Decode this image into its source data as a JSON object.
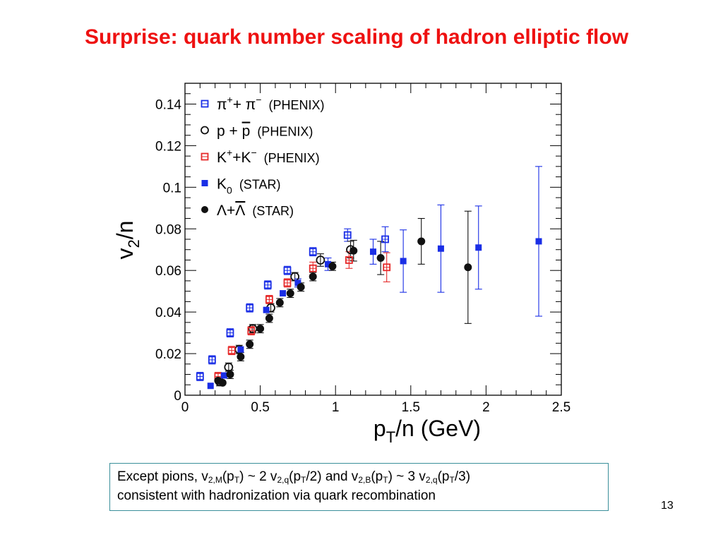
{
  "slide": {
    "title": "Surprise: quark number scaling of hadron elliptic flow",
    "page_number": "13",
    "note": {
      "line1": [
        {
          "t": "Except pions, v"
        },
        {
          "t": "2,M",
          "sub": true
        },
        {
          "t": "(p"
        },
        {
          "t": "T",
          "sub": true
        },
        {
          "t": ") ~ 2 v"
        },
        {
          "t": "2,q",
          "sub": true
        },
        {
          "t": "(p"
        },
        {
          "t": "T",
          "sub": true
        },
        {
          "t": "/2) and v"
        },
        {
          "t": "2,B",
          "sub": true
        },
        {
          "t": "(p"
        },
        {
          "t": "T",
          "sub": true
        },
        {
          "t": ") ~ 3 v"
        },
        {
          "t": "2,q",
          "sub": true
        },
        {
          "t": "(p"
        },
        {
          "t": "T",
          "sub": true
        },
        {
          "t": "/3)"
        }
      ],
      "line2": "consistent with hadronization via quark recombination"
    },
    "colors": {
      "title": "#ee1111",
      "box_border": "#3a8f9a"
    }
  },
  "chart_data": {
    "type": "scatter",
    "xlabel": "p_T/n (GeV)",
    "ylabel": "v_2/n",
    "xlim": [
      0,
      2.5
    ],
    "ylim": [
      0,
      0.15
    ],
    "xticks": [
      0,
      0.5,
      1,
      1.5,
      2,
      2.5
    ],
    "xtick_labels": [
      "0",
      "0.5",
      "1",
      "1.5",
      "2",
      "2.5"
    ],
    "yticks": [
      0,
      0.02,
      0.04,
      0.06,
      0.08,
      0.1,
      0.12,
      0.14
    ],
    "ytick_labels": [
      "0",
      "0.02",
      "0.04",
      "0.06",
      "0.08",
      "0.1",
      "0.12",
      "0.14"
    ],
    "grid": false,
    "legend_position": "top-left",
    "series": [
      {
        "name": "π⁺+ π⁻ (PHENIX)",
        "legend": {
          "main": "π",
          "sup1": "+",
          "mid": "+ π",
          "sup2": "−",
          "tag": "(PHENIX)"
        },
        "marker": "open-square",
        "color": "#1a2ee6",
        "points": [
          {
            "x": 0.1,
            "y": 0.009,
            "err": 0.002
          },
          {
            "x": 0.18,
            "y": 0.017,
            "err": 0.002
          },
          {
            "x": 0.3,
            "y": 0.03,
            "err": 0.002
          },
          {
            "x": 0.43,
            "y": 0.042,
            "err": 0.002
          },
          {
            "x": 0.55,
            "y": 0.053,
            "err": 0.002
          },
          {
            "x": 0.68,
            "y": 0.06,
            "err": 0.002
          },
          {
            "x": 0.85,
            "y": 0.069,
            "err": 0.002
          },
          {
            "x": 1.08,
            "y": 0.077,
            "err": 0.003
          },
          {
            "x": 1.33,
            "y": 0.075,
            "err": 0.006
          }
        ]
      },
      {
        "name": "p + p̄ (PHENIX)",
        "legend": {
          "main": "p + p",
          "overline_last": true,
          "tag": "(PHENIX)"
        },
        "marker": "open-circle",
        "color": "#111111",
        "points": [
          {
            "x": 0.23,
            "y": 0.0065,
            "err": 0.002
          },
          {
            "x": 0.29,
            "y": 0.0135,
            "err": 0.002
          },
          {
            "x": 0.36,
            "y": 0.022,
            "err": 0.002
          },
          {
            "x": 0.45,
            "y": 0.032,
            "err": 0.002
          },
          {
            "x": 0.57,
            "y": 0.042,
            "err": 0.002
          },
          {
            "x": 0.73,
            "y": 0.057,
            "err": 0.002
          },
          {
            "x": 0.9,
            "y": 0.065,
            "err": 0.003
          },
          {
            "x": 1.1,
            "y": 0.07,
            "err": 0.004
          }
        ]
      },
      {
        "name": "K⁺+K⁻ (PHENIX)",
        "legend": {
          "main": "K",
          "sup1": "+",
          "mid": "+K",
          "sup2": "−",
          "tag": "(PHENIX)"
        },
        "marker": "open-square",
        "color": "#e62a2a",
        "points": [
          {
            "x": 0.22,
            "y": 0.009,
            "err": 0.002
          },
          {
            "x": 0.31,
            "y": 0.0215,
            "err": 0.002
          },
          {
            "x": 0.44,
            "y": 0.031,
            "err": 0.002
          },
          {
            "x": 0.56,
            "y": 0.046,
            "err": 0.002
          },
          {
            "x": 0.68,
            "y": 0.054,
            "err": 0.002
          },
          {
            "x": 0.85,
            "y": 0.061,
            "err": 0.003
          },
          {
            "x": 1.09,
            "y": 0.065,
            "err": 0.004
          },
          {
            "x": 1.34,
            "y": 0.0615,
            "err": 0.007
          }
        ]
      },
      {
        "name": "K₀ (STAR)",
        "legend": {
          "main": "K",
          "sub1": "0",
          "tag": "(STAR)"
        },
        "marker": "filled-square",
        "color": "#1a2ee6",
        "points": [
          {
            "x": 0.17,
            "y": 0.0045,
            "err": 0.001
          },
          {
            "x": 0.26,
            "y": 0.0095,
            "err": 0.001
          },
          {
            "x": 0.37,
            "y": 0.022,
            "err": 0.001
          },
          {
            "x": 0.54,
            "y": 0.041,
            "err": 0.001
          },
          {
            "x": 0.65,
            "y": 0.049,
            "err": 0.001
          },
          {
            "x": 0.75,
            "y": 0.054,
            "err": 0.002
          },
          {
            "x": 0.95,
            "y": 0.063,
            "err": 0.003
          },
          {
            "x": 1.25,
            "y": 0.069,
            "err": 0.006
          },
          {
            "x": 1.45,
            "y": 0.0645,
            "err": 0.015
          },
          {
            "x": 1.7,
            "y": 0.0705,
            "err": 0.021
          },
          {
            "x": 1.95,
            "y": 0.071,
            "err": 0.02
          },
          {
            "x": 2.35,
            "y": 0.074,
            "err": 0.036
          }
        ]
      },
      {
        "name": "Λ+Λ̄ (STAR)",
        "legend": {
          "main": "Λ+Λ",
          "overline_last": true,
          "tag": "(STAR)"
        },
        "marker": "filled-circle",
        "color": "#111111",
        "points": [
          {
            "x": 0.22,
            "y": 0.007,
            "err": 0.001
          },
          {
            "x": 0.25,
            "y": 0.006,
            "err": 0.001
          },
          {
            "x": 0.3,
            "y": 0.01,
            "err": 0.002
          },
          {
            "x": 0.37,
            "y": 0.0185,
            "err": 0.002
          },
          {
            "x": 0.43,
            "y": 0.0245,
            "err": 0.002
          },
          {
            "x": 0.5,
            "y": 0.032,
            "err": 0.002
          },
          {
            "x": 0.56,
            "y": 0.037,
            "err": 0.002
          },
          {
            "x": 0.63,
            "y": 0.0445,
            "err": 0.002
          },
          {
            "x": 0.7,
            "y": 0.049,
            "err": 0.002
          },
          {
            "x": 0.77,
            "y": 0.052,
            "err": 0.002
          },
          {
            "x": 0.85,
            "y": 0.057,
            "err": 0.002
          },
          {
            "x": 0.98,
            "y": 0.062,
            "err": 0.002
          },
          {
            "x": 1.12,
            "y": 0.0695,
            "err": 0.005
          },
          {
            "x": 1.3,
            "y": 0.066,
            "err": 0.008
          },
          {
            "x": 1.57,
            "y": 0.074,
            "err": 0.011
          },
          {
            "x": 1.88,
            "y": 0.0615,
            "err": 0.027
          }
        ]
      }
    ]
  }
}
